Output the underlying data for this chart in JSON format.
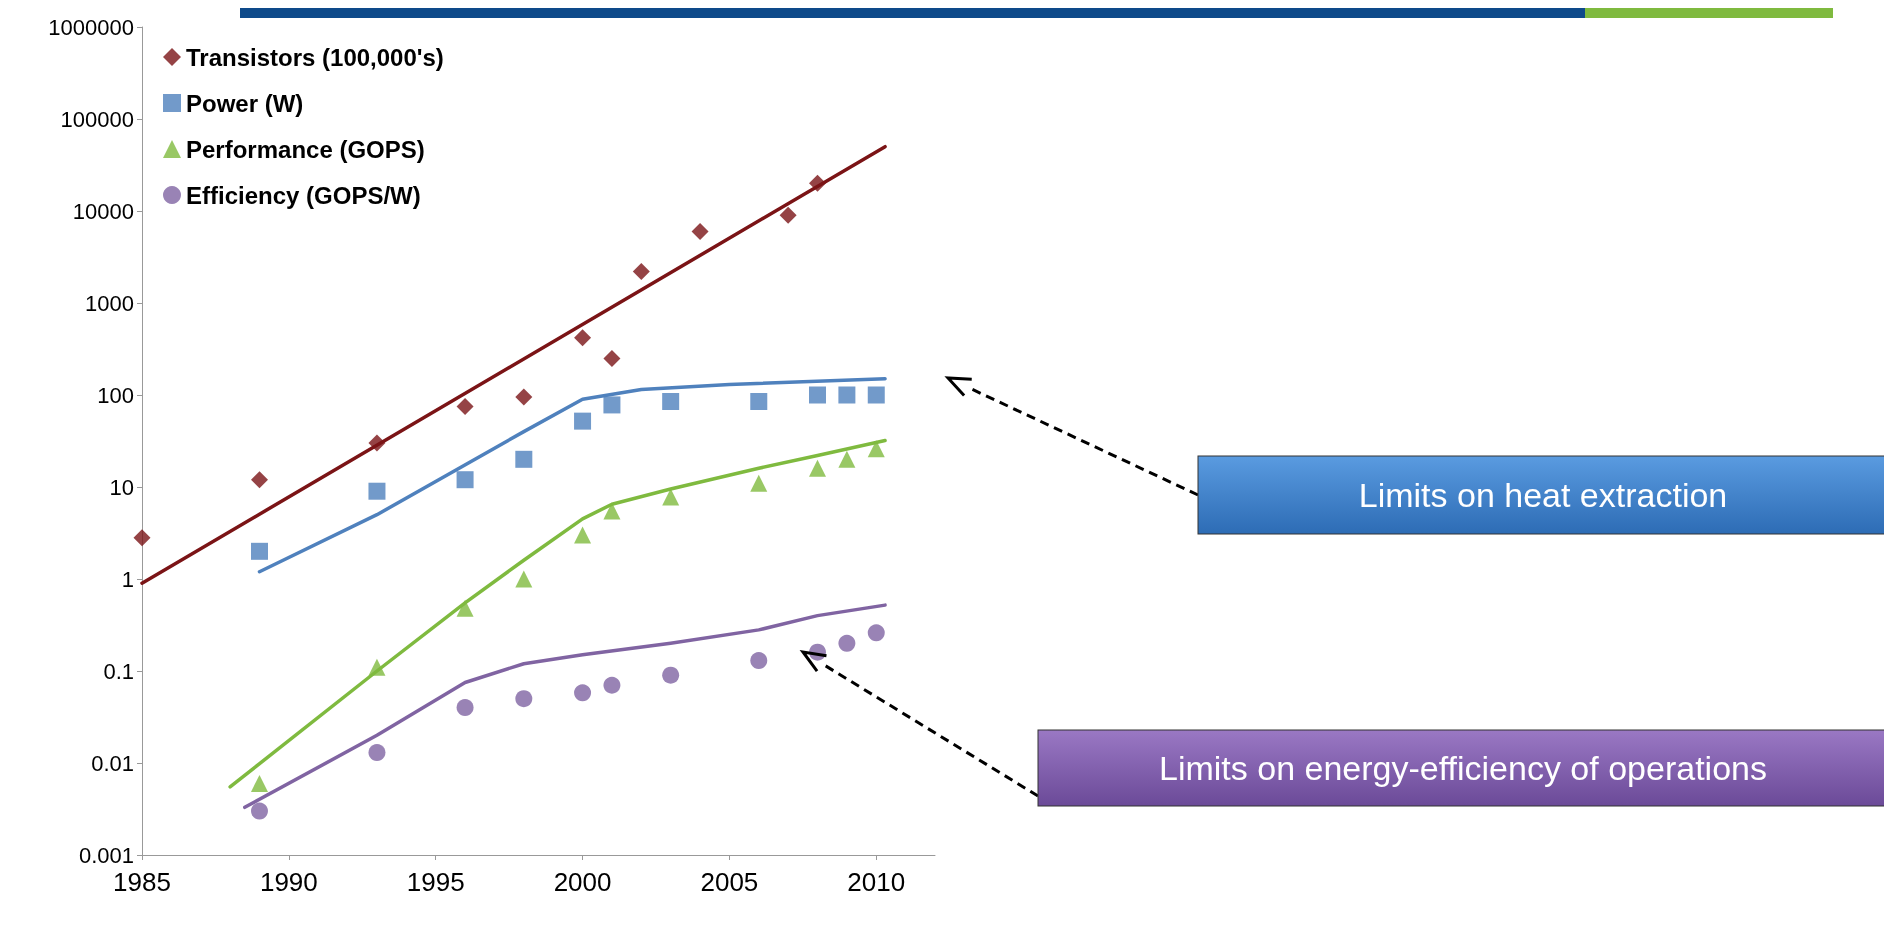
{
  "chart_data": {
    "type": "scatter",
    "log": "y",
    "grid": false,
    "legend": "top left",
    "xlim": [
      1985,
      2012
    ],
    "xticks": [
      1985,
      1990,
      1995,
      2000,
      2005,
      2010
    ],
    "ylim": [
      0.001,
      1000000
    ],
    "yticks": [
      0.001,
      0.01,
      0.1,
      1,
      10,
      100,
      1000,
      10000,
      100000,
      1000000
    ],
    "annotations": [
      "Limits on heat extraction",
      "Limits on energy-efficiency of operations"
    ],
    "series": [
      {
        "name": "Transistors (100,000's)",
        "marker": "diamond",
        "color": "#7b1416",
        "x": [
          1985,
          1989,
          1993,
          1996,
          1998,
          2000,
          2001,
          2002,
          2004,
          2007,
          2008
        ],
        "values": [
          2.8,
          12,
          30,
          75,
          95,
          420,
          250,
          2200,
          6000,
          9000,
          20000
        ]
      },
      {
        "name": "Power (W)",
        "marker": "square",
        "color": "#4f81bd",
        "x": [
          1989,
          1993,
          1996,
          1998,
          2000,
          2001,
          2003,
          2006,
          2008,
          2009,
          2010
        ],
        "values": [
          2,
          9,
          12,
          20,
          52,
          78,
          85,
          85,
          100,
          100,
          100
        ]
      },
      {
        "name": "Performance (GOPS)",
        "marker": "triangle",
        "color": "#7fba3f",
        "x": [
          1989,
          1993,
          1996,
          1998,
          2000,
          2001,
          2003,
          2006,
          2008,
          2009,
          2010
        ],
        "values": [
          0.006,
          0.11,
          0.48,
          1,
          3,
          5.5,
          7.8,
          11,
          16,
          20,
          26
        ]
      },
      {
        "name": "Efficiency (GOPS/W)",
        "marker": "circle",
        "color": "#8064a2",
        "x": [
          1989,
          1993,
          1996,
          1998,
          2000,
          2001,
          2003,
          2006,
          2008,
          2009,
          2010
        ],
        "values": [
          0.003,
          0.013,
          0.04,
          0.05,
          0.058,
          0.07,
          0.09,
          0.13,
          0.16,
          0.2,
          0.26
        ]
      },
      {
        "type": "line",
        "marker": "none",
        "line_style": "solid",
        "color": "#7b1416",
        "x": [
          1985,
          2010.3
        ],
        "values": [
          0.9,
          50000
        ]
      },
      {
        "type": "line",
        "marker": "none",
        "line_style": "solid",
        "color": "#4f81bd",
        "x": [
          1989,
          1993,
          1998,
          2000,
          2002,
          2005,
          2010.3
        ],
        "values": [
          1.2,
          5,
          40,
          90,
          115,
          130,
          150
        ]
      },
      {
        "type": "line",
        "marker": "none",
        "line_style": "solid",
        "color": "#7fba3f",
        "x": [
          1988,
          1993,
          1996,
          1998,
          2000,
          2001,
          2003,
          2006,
          2008,
          2010.3
        ],
        "values": [
          0.0055,
          0.1,
          0.55,
          1.6,
          4.5,
          6.5,
          9.5,
          16,
          22,
          32
        ]
      },
      {
        "type": "line",
        "marker": "none",
        "line_style": "solid",
        "color": "#8064a2",
        "x": [
          1988.5,
          1993,
          1996,
          1998,
          2000,
          2003,
          2006,
          2008,
          2010.3
        ],
        "values": [
          0.0033,
          0.02,
          0.075,
          0.12,
          0.15,
          0.2,
          0.28,
          0.4,
          0.52
        ]
      }
    ]
  }
}
